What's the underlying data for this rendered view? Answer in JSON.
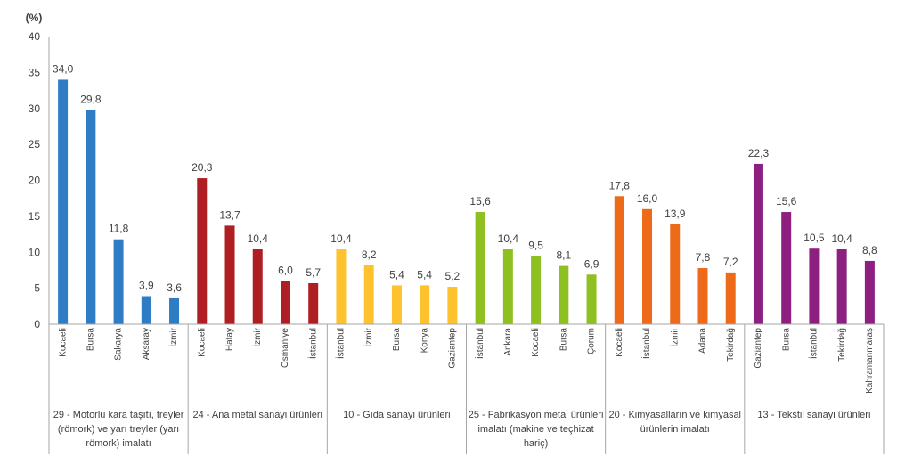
{
  "chart_data": {
    "type": "bar",
    "ylabel": "(%)",
    "ylim": [
      0,
      40
    ],
    "yticks": [
      0,
      5,
      10,
      15,
      20,
      25,
      30,
      35,
      40
    ],
    "grid": false,
    "groups": [
      {
        "name": "29 - Motorlu kara taşıtı, treyler (römork) ve yarı treyler (yarı römork) imalatı",
        "color": "#2E7CC3",
        "categories": [
          "Kocaeli",
          "Bursa",
          "Sakarya",
          "Aksaray",
          "İzmir"
        ],
        "values": [
          34.0,
          29.8,
          11.8,
          3.9,
          3.6
        ],
        "value_labels": [
          "34,0",
          "29,8",
          "11,8",
          "3,9",
          "3,6"
        ]
      },
      {
        "name": "24 - Ana metal sanayi ürünleri",
        "color": "#AF1E23",
        "categories": [
          "Kocaeli",
          "Hatay",
          "İzmir",
          "Osmaniye",
          "İstanbul"
        ],
        "values": [
          20.3,
          13.7,
          10.4,
          6.0,
          5.7
        ],
        "value_labels": [
          "20,3",
          "13,7",
          "10,4",
          "6,0",
          "5,7"
        ]
      },
      {
        "name": "10 - Gıda sanayi ürünleri",
        "color": "#FEC22F",
        "categories": [
          "İstanbul",
          "İzmir",
          "Bursa",
          "Konya",
          "Gaziantep"
        ],
        "values": [
          10.4,
          8.2,
          5.4,
          5.4,
          5.2
        ],
        "value_labels": [
          "10,4",
          "8,2",
          "5,4",
          "5,4",
          "5,2"
        ]
      },
      {
        "name": "25 - Fabrikasyon metal ürünleri imalatı (makine ve teçhizat hariç)",
        "color": "#8EC021",
        "categories": [
          "İstanbul",
          "Ankara",
          "Kocaeli",
          "Bursa",
          "Çorum"
        ],
        "values": [
          15.6,
          10.4,
          9.5,
          8.1,
          6.9
        ],
        "value_labels": [
          "15,6",
          "10,4",
          "9,5",
          "8,1",
          "6,9"
        ]
      },
      {
        "name": "20 - Kimyasalların ve kimyasal ürünlerin imalatı",
        "color": "#EE6A1B",
        "categories": [
          "Kocaeli",
          "İstanbul",
          "İzmir",
          "Adana",
          "Tekirdağ"
        ],
        "values": [
          17.8,
          16.0,
          13.9,
          7.8,
          7.2
        ],
        "value_labels": [
          "17,8",
          "16,0",
          "13,9",
          "7,8",
          "7,2"
        ]
      },
      {
        "name": "13 - Tekstil sanayi ürünleri",
        "color": "#8C1F80",
        "categories": [
          "Gaziantep",
          "Bursa",
          "İstanbul",
          "Tekirdağ",
          "Kahramanmaraş"
        ],
        "values": [
          22.3,
          15.6,
          10.5,
          10.4,
          8.8
        ],
        "value_labels": [
          "22,3",
          "15,6",
          "10,5",
          "10,4",
          "8,8"
        ]
      }
    ]
  }
}
